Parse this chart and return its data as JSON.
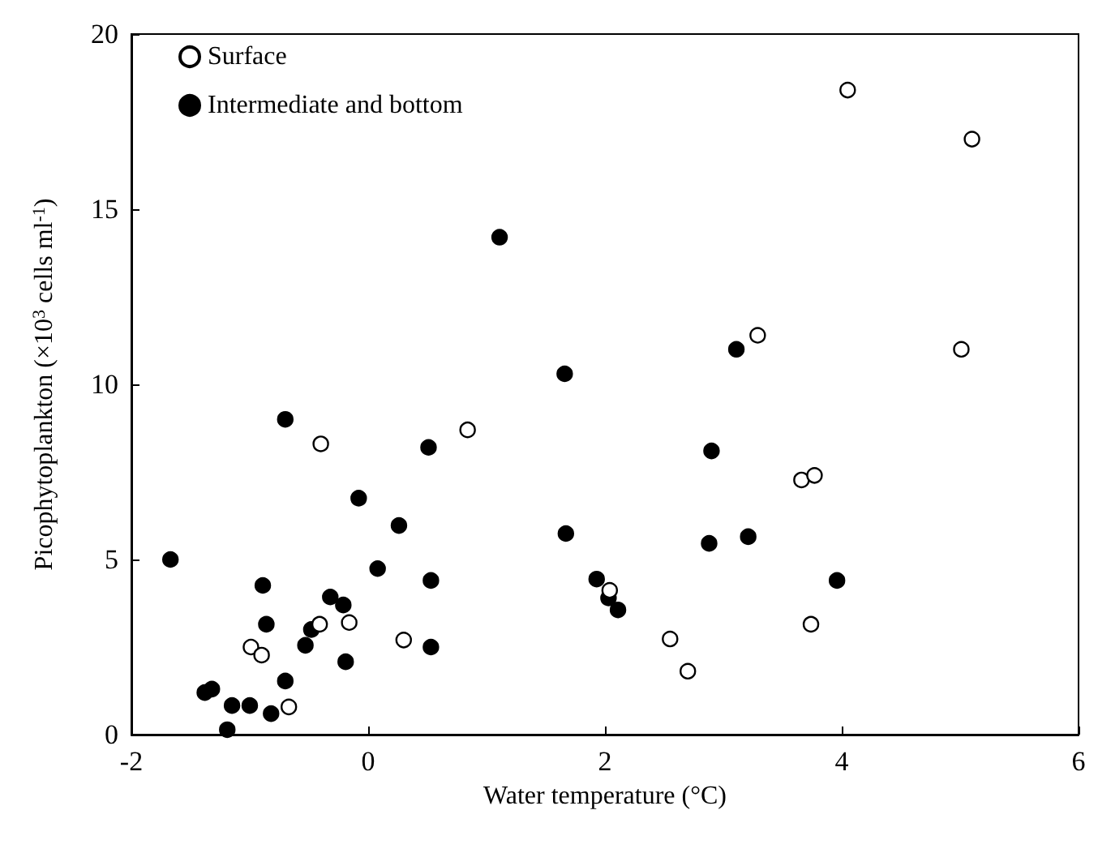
{
  "chart_data": {
    "type": "scatter",
    "xlabel": "Water temperature (°C)",
    "ylabel": "Picophytoplankton (×10$^{3}$ cells ml$^{-1}$)",
    "xlim": [
      -2,
      6
    ],
    "xticks": [
      -2,
      0,
      2,
      4,
      6
    ],
    "ylim": [
      0,
      20
    ],
    "yticks": [
      0,
      5,
      10,
      15,
      20
    ],
    "grid": false,
    "legend": "top left",
    "marker": "circle",
    "series": [
      {
        "name": "Surface",
        "color": "#ffffff",
        "x": [
          4.05,
          5.1,
          3.29,
          5.01,
          3.66,
          3.77,
          2.04,
          2.55,
          2.7,
          3.74,
          0.84,
          -0.4,
          -0.16,
          -0.41,
          0.3,
          -0.99,
          -0.9,
          -0.67
        ],
        "values": [
          18.4,
          17.0,
          11.4,
          11.0,
          7.27,
          7.4,
          4.12,
          2.73,
          1.81,
          3.15,
          8.7,
          8.3,
          3.2,
          3.15,
          2.7,
          2.5,
          2.27,
          0.79
        ]
      },
      {
        "name": "Intermediate and bottom",
        "color": "#000000",
        "x": [
          -0.7,
          0.51,
          -0.08,
          0.26,
          -1.67,
          0.08,
          0.53,
          -0.89,
          -0.32,
          -0.21,
          -0.86,
          -0.48,
          -0.53,
          0.53,
          -0.19,
          -0.7,
          -1.38,
          -1.32,
          -1.15,
          -1.0,
          -0.82,
          -1.19,
          1.11,
          1.66,
          3.11,
          2.9,
          1.67,
          2.88,
          3.21,
          1.93,
          2.03,
          2.11,
          3.96
        ],
        "values": [
          9.0,
          8.2,
          6.75,
          5.97,
          5.0,
          4.74,
          4.4,
          4.26,
          3.93,
          3.7,
          3.15,
          3.0,
          2.55,
          2.5,
          2.08,
          1.53,
          1.2,
          1.3,
          0.83,
          0.83,
          0.6,
          0.14,
          14.2,
          10.3,
          11.0,
          8.1,
          5.74,
          5.46,
          5.65,
          4.44,
          3.9,
          3.56,
          4.4
        ]
      }
    ]
  }
}
